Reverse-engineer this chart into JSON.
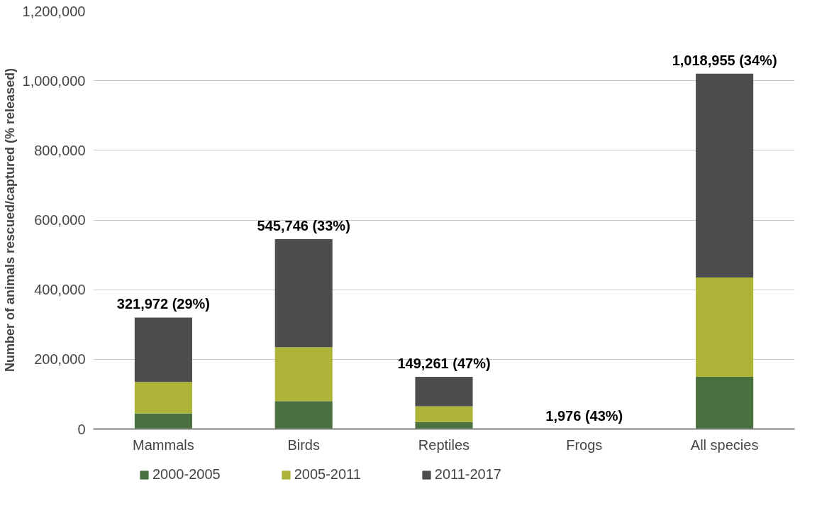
{
  "chart_data": {
    "type": "bar",
    "stacked": true,
    "ylabel": "Number of animals rescued/captured (% released)",
    "categories": [
      "Mammals",
      "Birds",
      "Reptiles",
      "Frogs",
      "All species"
    ],
    "series": [
      {
        "name": "2000-2005",
        "color": "#4a7040",
        "values": [
          45000,
          80000,
          20000,
          null,
          150000
        ]
      },
      {
        "name": "2005-2011",
        "color": "#adb437",
        "values": [
          90000,
          155000,
          45000,
          null,
          285000
        ]
      },
      {
        "name": "2011-2017",
        "color": "#4d4d4f",
        "values": [
          185000,
          310000,
          85000,
          null,
          585000
        ]
      }
    ],
    "totals": [
      "321,972 (29%)",
      "545,746 (33%)",
      "149,261 (47%)",
      "1,976 (43%)",
      "1,018,955 (34%)"
    ],
    "ylim": [
      0,
      1200000
    ],
    "yticks": [
      {
        "value": 0,
        "label": "0"
      },
      {
        "value": 200000,
        "label": "200,000"
      },
      {
        "value": 400000,
        "label": "400,000"
      },
      {
        "value": 600000,
        "label": "600,000"
      },
      {
        "value": 800000,
        "label": "800,000"
      },
      {
        "value": 1000000,
        "label": "1,000,000"
      },
      {
        "value": 1200000,
        "label": "1,200,000"
      }
    ],
    "grid": "y",
    "legend": "bottom left"
  }
}
